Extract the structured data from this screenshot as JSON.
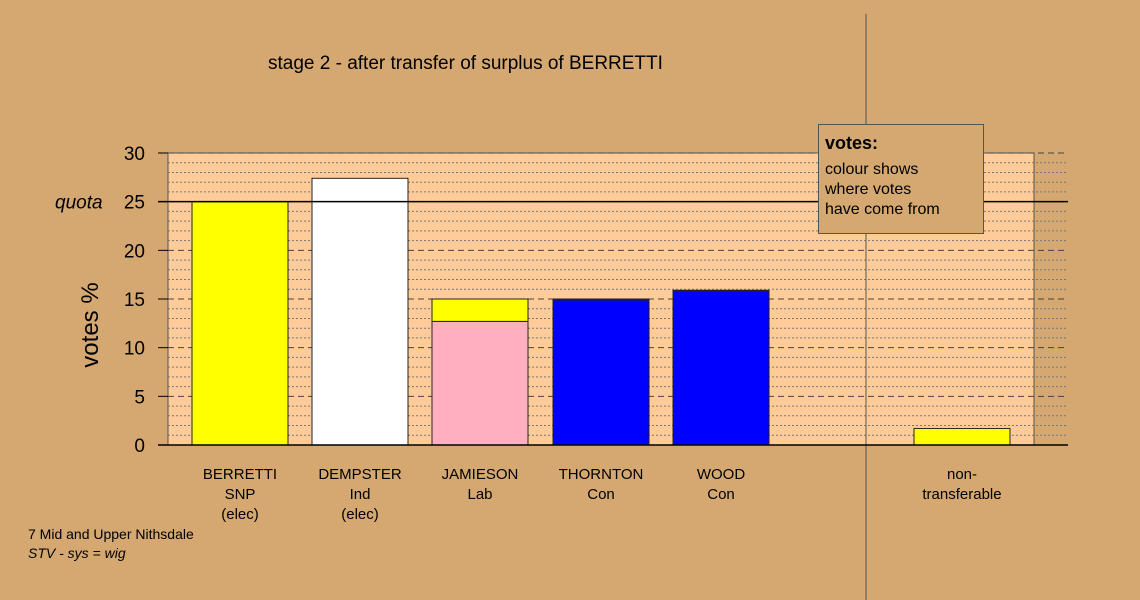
{
  "title": "stage 2 - after transfer of surplus of BERRETTI",
  "footer": {
    "line1": "7 Mid and Upper Nithsdale",
    "line2": "STV - sys = wig"
  },
  "legend": {
    "title": "votes:",
    "lines": [
      "colour shows",
      "where votes",
      "have come from"
    ]
  },
  "colors": {
    "background": "#d4a870",
    "plot_band": "#ffcc99",
    "snp": "#ffff00",
    "ind": "#ffffff",
    "lab": "#ffafc0",
    "con": "#0000ff"
  },
  "chart_data": {
    "type": "bar",
    "ylabel": "votes %",
    "ylim": [
      0,
      30
    ],
    "yticks": [
      0,
      5,
      10,
      15,
      20,
      25,
      30
    ],
    "quota": {
      "label": "quota",
      "value": 25
    },
    "categories": [
      {
        "lines": [
          "BERRETTI",
          "SNP",
          "(elec)"
        ],
        "segments": [
          {
            "value": 25.0,
            "color": "#ffff00"
          }
        ]
      },
      {
        "lines": [
          "DEMPSTER",
          "Ind",
          "(elec)"
        ],
        "segments": [
          {
            "value": 27.4,
            "color": "#ffffff"
          }
        ]
      },
      {
        "lines": [
          "JAMIESON",
          "Lab"
        ],
        "segments": [
          {
            "value": 12.7,
            "color": "#ffafc0"
          },
          {
            "value": 2.3,
            "color": "#ffff00"
          }
        ]
      },
      {
        "lines": [
          "THORNTON",
          "Con"
        ],
        "segments": [
          {
            "value": 14.9,
            "color": "#0000ff"
          },
          {
            "value": 0.1,
            "color": "#ffff00"
          }
        ]
      },
      {
        "lines": [
          "WOOD",
          "Con"
        ],
        "segments": [
          {
            "value": 15.8,
            "color": "#0000ff"
          },
          {
            "value": 0.1,
            "color": "#ffff00"
          }
        ]
      },
      {
        "lines": [
          "non-",
          "transferable"
        ],
        "segments": [
          {
            "value": 1.7,
            "color": "#ffff00"
          }
        ]
      }
    ]
  }
}
